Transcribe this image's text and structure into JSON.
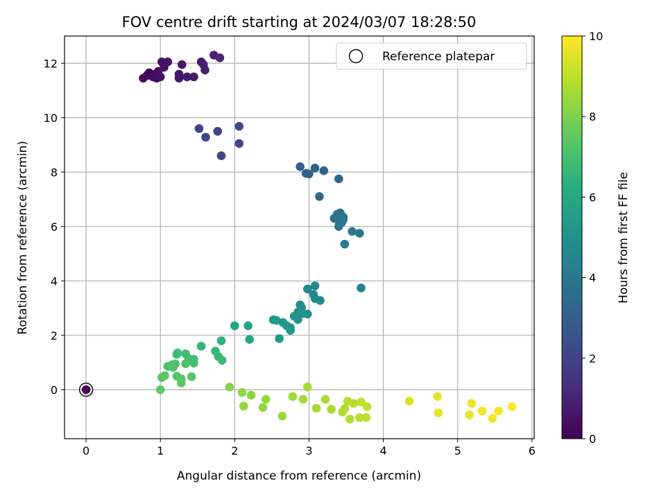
{
  "chart_data": {
    "type": "scatter",
    "title": "FOV centre drift starting at 2024/03/07 18:28:50",
    "xlabel": "Angular distance from reference (arcmin)",
    "ylabel": "Rotation from reference (arcmin)",
    "xlim": [
      -0.29,
      6.03
    ],
    "ylim": [
      -1.8,
      13.0
    ],
    "xticks": [
      0,
      1,
      2,
      3,
      4,
      5,
      6
    ],
    "yticks": [
      0,
      2,
      4,
      6,
      8,
      10,
      12
    ],
    "grid": true,
    "legend": {
      "position": "top-right",
      "entries": [
        "Reference platepar"
      ]
    },
    "colorbar": {
      "label": "Hours from first FF file",
      "range": [
        0,
        10
      ],
      "ticks": [
        0,
        2,
        4,
        6,
        8,
        10
      ],
      "colormap": "viridis"
    },
    "reference_point": {
      "x": 0,
      "y": 0
    },
    "points": [
      {
        "x": 0.0,
        "y": 0.0,
        "h": 0.0
      },
      {
        "x": 0.77,
        "y": 11.45,
        "h": 0.2
      },
      {
        "x": 0.82,
        "y": 11.55,
        "h": 0.25
      },
      {
        "x": 0.85,
        "y": 11.65,
        "h": 0.3
      },
      {
        "x": 0.9,
        "y": 11.5,
        "h": 0.3
      },
      {
        "x": 0.93,
        "y": 11.6,
        "h": 0.35
      },
      {
        "x": 0.95,
        "y": 11.45,
        "h": 0.35
      },
      {
        "x": 0.97,
        "y": 11.7,
        "h": 0.4
      },
      {
        "x": 1.0,
        "y": 11.5,
        "h": 0.4
      },
      {
        "x": 1.02,
        "y": 12.05,
        "h": 0.45
      },
      {
        "x": 1.05,
        "y": 11.85,
        "h": 0.45
      },
      {
        "x": 1.1,
        "y": 12.05,
        "h": 0.5
      },
      {
        "x": 1.25,
        "y": 11.45,
        "h": 0.6
      },
      {
        "x": 1.25,
        "y": 11.6,
        "h": 0.6
      },
      {
        "x": 1.29,
        "y": 11.95,
        "h": 0.65
      },
      {
        "x": 1.36,
        "y": 11.5,
        "h": 0.7
      },
      {
        "x": 1.45,
        "y": 11.5,
        "h": 0.75
      },
      {
        "x": 1.55,
        "y": 12.05,
        "h": 0.8
      },
      {
        "x": 1.58,
        "y": 11.95,
        "h": 0.85
      },
      {
        "x": 1.6,
        "y": 11.75,
        "h": 0.9
      },
      {
        "x": 1.72,
        "y": 12.3,
        "h": 0.95
      },
      {
        "x": 1.8,
        "y": 12.2,
        "h": 1.0
      },
      {
        "x": 1.52,
        "y": 9.6,
        "h": 2.0
      },
      {
        "x": 1.61,
        "y": 9.28,
        "h": 2.05
      },
      {
        "x": 1.77,
        "y": 9.5,
        "h": 2.1
      },
      {
        "x": 1.82,
        "y": 8.6,
        "h": 2.2
      },
      {
        "x": 2.06,
        "y": 9.68,
        "h": 2.15
      },
      {
        "x": 2.06,
        "y": 9.05,
        "h": 2.25
      },
      {
        "x": 2.88,
        "y": 8.2,
        "h": 3.0
      },
      {
        "x": 2.96,
        "y": 7.95,
        "h": 3.05
      },
      {
        "x": 3.0,
        "y": 7.93,
        "h": 3.1
      },
      {
        "x": 3.08,
        "y": 8.15,
        "h": 3.1
      },
      {
        "x": 3.2,
        "y": 8.05,
        "h": 3.15
      },
      {
        "x": 3.14,
        "y": 7.1,
        "h": 3.35
      },
      {
        "x": 3.4,
        "y": 7.75,
        "h": 3.25
      },
      {
        "x": 3.34,
        "y": 6.3,
        "h": 3.7
      },
      {
        "x": 3.38,
        "y": 6.45,
        "h": 3.7
      },
      {
        "x": 3.4,
        "y": 6.2,
        "h": 3.75
      },
      {
        "x": 3.42,
        "y": 6.5,
        "h": 3.75
      },
      {
        "x": 3.44,
        "y": 6.3,
        "h": 3.8
      },
      {
        "x": 3.46,
        "y": 6.35,
        "h": 3.8
      },
      {
        "x": 3.4,
        "y": 6.0,
        "h": 3.85
      },
      {
        "x": 3.44,
        "y": 6.15,
        "h": 3.85
      },
      {
        "x": 3.46,
        "y": 6.25,
        "h": 3.9
      },
      {
        "x": 3.58,
        "y": 5.82,
        "h": 4.05
      },
      {
        "x": 3.68,
        "y": 5.75,
        "h": 4.1
      },
      {
        "x": 3.48,
        "y": 5.35,
        "h": 4.2
      },
      {
        "x": 2.98,
        "y": 3.7,
        "h": 4.6
      },
      {
        "x": 3.08,
        "y": 3.82,
        "h": 4.6
      },
      {
        "x": 3.06,
        "y": 3.5,
        "h": 4.7
      },
      {
        "x": 3.08,
        "y": 3.35,
        "h": 4.75
      },
      {
        "x": 3.15,
        "y": 3.28,
        "h": 4.8
      },
      {
        "x": 3.7,
        "y": 3.74,
        "h": 4.55
      },
      {
        "x": 2.88,
        "y": 3.12,
        "h": 4.9
      },
      {
        "x": 2.9,
        "y": 3.02,
        "h": 4.95
      },
      {
        "x": 2.85,
        "y": 2.85,
        "h": 5.0
      },
      {
        "x": 2.92,
        "y": 2.8,
        "h": 5.05
      },
      {
        "x": 2.98,
        "y": 2.78,
        "h": 5.05
      },
      {
        "x": 2.8,
        "y": 2.7,
        "h": 5.1
      },
      {
        "x": 2.85,
        "y": 2.58,
        "h": 5.15
      },
      {
        "x": 2.65,
        "y": 2.47,
        "h": 5.25
      },
      {
        "x": 2.7,
        "y": 2.35,
        "h": 5.3
      },
      {
        "x": 2.75,
        "y": 2.28,
        "h": 5.35
      },
      {
        "x": 2.75,
        "y": 2.18,
        "h": 5.4
      },
      {
        "x": 2.52,
        "y": 2.57,
        "h": 5.3
      },
      {
        "x": 2.56,
        "y": 2.55,
        "h": 5.35
      },
      {
        "x": 2.6,
        "y": 1.88,
        "h": 5.5
      },
      {
        "x": 2.0,
        "y": 2.35,
        "h": 5.8
      },
      {
        "x": 2.18,
        "y": 2.35,
        "h": 5.85
      },
      {
        "x": 2.2,
        "y": 1.85,
        "h": 5.95
      },
      {
        "x": 1.55,
        "y": 1.6,
        "h": 6.6
      },
      {
        "x": 1.82,
        "y": 1.8,
        "h": 6.4
      },
      {
        "x": 1.74,
        "y": 1.42,
        "h": 6.7
      },
      {
        "x": 1.78,
        "y": 1.22,
        "h": 6.75
      },
      {
        "x": 1.83,
        "y": 1.08,
        "h": 6.8
      },
      {
        "x": 1.22,
        "y": 1.3,
        "h": 6.85
      },
      {
        "x": 1.23,
        "y": 1.35,
        "h": 6.85
      },
      {
        "x": 1.34,
        "y": 1.32,
        "h": 6.9
      },
      {
        "x": 1.38,
        "y": 1.15,
        "h": 6.95
      },
      {
        "x": 1.45,
        "y": 1.12,
        "h": 7.0
      },
      {
        "x": 1.45,
        "y": 0.98,
        "h": 7.05
      },
      {
        "x": 1.34,
        "y": 0.96,
        "h": 7.1
      },
      {
        "x": 1.1,
        "y": 0.86,
        "h": 7.15
      },
      {
        "x": 1.16,
        "y": 0.92,
        "h": 7.15
      },
      {
        "x": 1.2,
        "y": 0.95,
        "h": 7.2
      },
      {
        "x": 1.17,
        "y": 0.82,
        "h": 7.2
      },
      {
        "x": 1.22,
        "y": 0.5,
        "h": 7.3
      },
      {
        "x": 1.28,
        "y": 0.4,
        "h": 7.35
      },
      {
        "x": 1.28,
        "y": 0.25,
        "h": 7.4
      },
      {
        "x": 1.42,
        "y": 0.48,
        "h": 7.35
      },
      {
        "x": 1.02,
        "y": 0.45,
        "h": 7.4
      },
      {
        "x": 1.06,
        "y": 0.52,
        "h": 7.45
      },
      {
        "x": 1.0,
        "y": 0.0,
        "h": 7.5
      },
      {
        "x": 1.93,
        "y": 0.1,
        "h": 8.2
      },
      {
        "x": 2.1,
        "y": -0.1,
        "h": 8.3
      },
      {
        "x": 2.12,
        "y": -0.6,
        "h": 8.35
      },
      {
        "x": 2.22,
        "y": -0.2,
        "h": 8.3
      },
      {
        "x": 2.38,
        "y": -0.65,
        "h": 8.4
      },
      {
        "x": 2.42,
        "y": -0.35,
        "h": 8.45
      },
      {
        "x": 2.64,
        "y": -0.97,
        "h": 8.5
      },
      {
        "x": 2.78,
        "y": -0.25,
        "h": 8.55
      },
      {
        "x": 2.92,
        "y": -0.35,
        "h": 8.6
      },
      {
        "x": 2.98,
        "y": 0.1,
        "h": 8.6
      },
      {
        "x": 3.1,
        "y": -0.68,
        "h": 8.65
      },
      {
        "x": 3.22,
        "y": -0.35,
        "h": 8.7
      },
      {
        "x": 3.3,
        "y": -0.72,
        "h": 8.75
      },
      {
        "x": 3.45,
        "y": -0.82,
        "h": 8.8
      },
      {
        "x": 3.48,
        "y": -0.7,
        "h": 8.85
      },
      {
        "x": 3.52,
        "y": -0.42,
        "h": 8.85
      },
      {
        "x": 3.55,
        "y": -1.08,
        "h": 8.9
      },
      {
        "x": 3.6,
        "y": -0.5,
        "h": 8.95
      },
      {
        "x": 3.68,
        "y": -1.03,
        "h": 9.0
      },
      {
        "x": 3.7,
        "y": -0.45,
        "h": 9.05
      },
      {
        "x": 3.77,
        "y": -1.02,
        "h": 9.05
      },
      {
        "x": 3.78,
        "y": -0.62,
        "h": 9.1
      },
      {
        "x": 4.35,
        "y": -0.42,
        "h": 9.5
      },
      {
        "x": 4.73,
        "y": -0.25,
        "h": 9.6
      },
      {
        "x": 4.74,
        "y": -0.85,
        "h": 9.65
      },
      {
        "x": 5.16,
        "y": -0.92,
        "h": 9.7
      },
      {
        "x": 5.19,
        "y": -0.5,
        "h": 9.75
      },
      {
        "x": 5.33,
        "y": -0.78,
        "h": 9.8
      },
      {
        "x": 5.47,
        "y": -1.05,
        "h": 9.85
      },
      {
        "x": 5.55,
        "y": -0.78,
        "h": 9.9
      },
      {
        "x": 5.73,
        "y": -0.62,
        "h": 9.95
      }
    ]
  }
}
